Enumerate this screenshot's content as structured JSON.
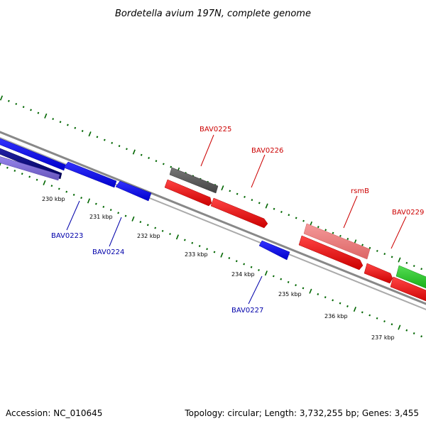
{
  "title": "Bordetella avium 197N, complete genome",
  "footer": {
    "accession": "Accession: NC_010645",
    "summary": "Topology: circular; Length: 3,732,255 bp; Genes: 3,455"
  },
  "colors": {
    "forward_label": "#cc0000",
    "reverse_label": "#0000aa",
    "tick": "#006600",
    "backbone": "#888888"
  },
  "ruler_ticks": [
    {
      "label": "230 kbp"
    },
    {
      "label": "231 kbp"
    },
    {
      "label": "232 kbp"
    },
    {
      "label": "233 kbp"
    },
    {
      "label": "234 kbp"
    },
    {
      "label": "235 kbp"
    },
    {
      "label": "236 kbp"
    },
    {
      "label": "237 kbp"
    }
  ],
  "forward_labels": [
    {
      "name": "BAV0225"
    },
    {
      "name": "BAV0226"
    },
    {
      "name": "rsmB"
    },
    {
      "name": "BAV0229"
    }
  ],
  "reverse_labels": [
    {
      "name": "BAV0223"
    },
    {
      "name": "BAV0224"
    },
    {
      "name": "BAV0227"
    }
  ],
  "legend_feature_colors": {
    "cds_forward": "#ff0000",
    "cds_forward_light": "#ee7777",
    "cds_reverse": "#0000ff",
    "cds_reverse_dark": "#000066",
    "cds_reverse_light": "#7766cc",
    "other": "#555555",
    "rna": "#22bb22"
  }
}
